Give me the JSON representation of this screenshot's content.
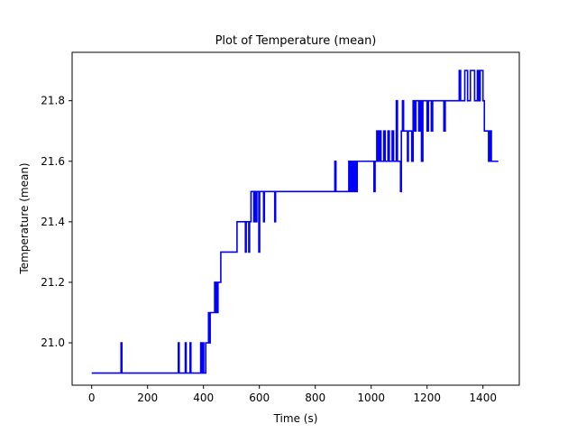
{
  "chart_data": {
    "type": "line",
    "title": "Plot of Temperature (mean)",
    "xlabel": "Time (s)",
    "ylabel": "Temperature (mean)",
    "xlim": [
      -70,
      1530
    ],
    "ylim": [
      20.86,
      21.96
    ],
    "xticks": [
      0,
      200,
      400,
      600,
      800,
      1000,
      1200,
      1400
    ],
    "yticks": [
      21.0,
      21.2,
      21.4,
      21.6,
      21.8
    ],
    "ytick_labels": [
      "21.0",
      "21.2",
      "21.4",
      "21.6",
      "21.8"
    ],
    "grid": false,
    "line_color": "#0000ff",
    "series": [
      {
        "step": true,
        "points": [
          [
            0,
            20.9
          ],
          [
            105,
            20.9
          ],
          [
            105,
            21.0
          ],
          [
            108,
            21.0
          ],
          [
            108,
            20.9
          ],
          [
            310,
            20.9
          ],
          [
            310,
            21.0
          ],
          [
            313,
            21.0
          ],
          [
            313,
            20.9
          ],
          [
            335,
            20.9
          ],
          [
            335,
            21.0
          ],
          [
            338,
            21.0
          ],
          [
            338,
            20.9
          ],
          [
            352,
            20.9
          ],
          [
            352,
            21.0
          ],
          [
            355,
            21.0
          ],
          [
            355,
            20.9
          ],
          [
            390,
            20.9
          ],
          [
            390,
            21.0
          ],
          [
            393,
            21.0
          ],
          [
            393,
            20.9
          ],
          [
            398,
            20.9
          ],
          [
            398,
            21.0
          ],
          [
            401,
            21.0
          ],
          [
            401,
            20.9
          ],
          [
            408,
            20.9
          ],
          [
            408,
            21.0
          ],
          [
            418,
            21.0
          ],
          [
            418,
            21.1
          ],
          [
            421,
            21.1
          ],
          [
            421,
            21.0
          ],
          [
            424,
            21.0
          ],
          [
            424,
            21.1
          ],
          [
            440,
            21.1
          ],
          [
            440,
            21.2
          ],
          [
            443,
            21.2
          ],
          [
            443,
            21.1
          ],
          [
            446,
            21.1
          ],
          [
            446,
            21.2
          ],
          [
            449,
            21.2
          ],
          [
            449,
            21.1
          ],
          [
            452,
            21.1
          ],
          [
            452,
            21.2
          ],
          [
            462,
            21.2
          ],
          [
            462,
            21.3
          ],
          [
            520,
            21.3
          ],
          [
            520,
            21.4
          ],
          [
            550,
            21.4
          ],
          [
            550,
            21.3
          ],
          [
            553,
            21.3
          ],
          [
            553,
            21.4
          ],
          [
            562,
            21.4
          ],
          [
            562,
            21.3
          ],
          [
            565,
            21.3
          ],
          [
            565,
            21.4
          ],
          [
            570,
            21.4
          ],
          [
            570,
            21.5
          ],
          [
            580,
            21.5
          ],
          [
            580,
            21.4
          ],
          [
            583,
            21.4
          ],
          [
            583,
            21.5
          ],
          [
            588,
            21.5
          ],
          [
            588,
            21.4
          ],
          [
            591,
            21.4
          ],
          [
            591,
            21.5
          ],
          [
            598,
            21.5
          ],
          [
            598,
            21.3
          ],
          [
            601,
            21.3
          ],
          [
            601,
            21.5
          ],
          [
            615,
            21.5
          ],
          [
            615,
            21.4
          ],
          [
            618,
            21.4
          ],
          [
            618,
            21.5
          ],
          [
            655,
            21.5
          ],
          [
            655,
            21.4
          ],
          [
            658,
            21.4
          ],
          [
            658,
            21.5
          ],
          [
            870,
            21.5
          ],
          [
            870,
            21.6
          ],
          [
            874,
            21.6
          ],
          [
            874,
            21.5
          ],
          [
            920,
            21.5
          ],
          [
            920,
            21.6
          ],
          [
            925,
            21.6
          ],
          [
            925,
            21.5
          ],
          [
            930,
            21.5
          ],
          [
            930,
            21.6
          ],
          [
            935,
            21.6
          ],
          [
            935,
            21.5
          ],
          [
            940,
            21.5
          ],
          [
            940,
            21.6
          ],
          [
            945,
            21.6
          ],
          [
            945,
            21.5
          ],
          [
            950,
            21.5
          ],
          [
            950,
            21.6
          ],
          [
            1010,
            21.6
          ],
          [
            1010,
            21.5
          ],
          [
            1014,
            21.5
          ],
          [
            1014,
            21.6
          ],
          [
            1020,
            21.6
          ],
          [
            1020,
            21.7
          ],
          [
            1025,
            21.7
          ],
          [
            1025,
            21.6
          ],
          [
            1030,
            21.6
          ],
          [
            1030,
            21.7
          ],
          [
            1035,
            21.7
          ],
          [
            1035,
            21.6
          ],
          [
            1045,
            21.6
          ],
          [
            1045,
            21.7
          ],
          [
            1050,
            21.7
          ],
          [
            1050,
            21.6
          ],
          [
            1060,
            21.6
          ],
          [
            1060,
            21.7
          ],
          [
            1065,
            21.7
          ],
          [
            1065,
            21.6
          ],
          [
            1075,
            21.6
          ],
          [
            1075,
            21.7
          ],
          [
            1080,
            21.7
          ],
          [
            1080,
            21.6
          ],
          [
            1090,
            21.6
          ],
          [
            1090,
            21.8
          ],
          [
            1094,
            21.8
          ],
          [
            1094,
            21.6
          ],
          [
            1105,
            21.6
          ],
          [
            1105,
            21.5
          ],
          [
            1108,
            21.5
          ],
          [
            1108,
            21.7
          ],
          [
            1112,
            21.7
          ],
          [
            1112,
            21.8
          ],
          [
            1116,
            21.8
          ],
          [
            1116,
            21.7
          ],
          [
            1130,
            21.7
          ],
          [
            1130,
            21.6
          ],
          [
            1133,
            21.6
          ],
          [
            1133,
            21.7
          ],
          [
            1145,
            21.7
          ],
          [
            1145,
            21.6
          ],
          [
            1150,
            21.6
          ],
          [
            1150,
            21.8
          ],
          [
            1155,
            21.8
          ],
          [
            1155,
            21.7
          ],
          [
            1160,
            21.7
          ],
          [
            1160,
            21.8
          ],
          [
            1170,
            21.8
          ],
          [
            1170,
            21.7
          ],
          [
            1175,
            21.7
          ],
          [
            1175,
            21.8
          ],
          [
            1180,
            21.8
          ],
          [
            1180,
            21.6
          ],
          [
            1185,
            21.6
          ],
          [
            1185,
            21.8
          ],
          [
            1200,
            21.8
          ],
          [
            1200,
            21.7
          ],
          [
            1205,
            21.7
          ],
          [
            1205,
            21.8
          ],
          [
            1215,
            21.8
          ],
          [
            1215,
            21.7
          ],
          [
            1220,
            21.7
          ],
          [
            1220,
            21.8
          ],
          [
            1260,
            21.8
          ],
          [
            1260,
            21.7
          ],
          [
            1265,
            21.7
          ],
          [
            1265,
            21.8
          ],
          [
            1315,
            21.8
          ],
          [
            1315,
            21.9
          ],
          [
            1320,
            21.9
          ],
          [
            1320,
            21.8
          ],
          [
            1335,
            21.8
          ],
          [
            1335,
            21.9
          ],
          [
            1345,
            21.9
          ],
          [
            1345,
            21.8
          ],
          [
            1355,
            21.8
          ],
          [
            1355,
            21.9
          ],
          [
            1370,
            21.9
          ],
          [
            1370,
            21.8
          ],
          [
            1380,
            21.8
          ],
          [
            1380,
            21.9
          ],
          [
            1385,
            21.9
          ],
          [
            1385,
            21.8
          ],
          [
            1390,
            21.8
          ],
          [
            1390,
            21.9
          ],
          [
            1400,
            21.9
          ],
          [
            1400,
            21.8
          ],
          [
            1405,
            21.8
          ],
          [
            1405,
            21.7
          ],
          [
            1420,
            21.7
          ],
          [
            1420,
            21.6
          ],
          [
            1425,
            21.6
          ],
          [
            1425,
            21.7
          ],
          [
            1430,
            21.7
          ],
          [
            1430,
            21.6
          ],
          [
            1455,
            21.6
          ]
        ]
      }
    ]
  }
}
